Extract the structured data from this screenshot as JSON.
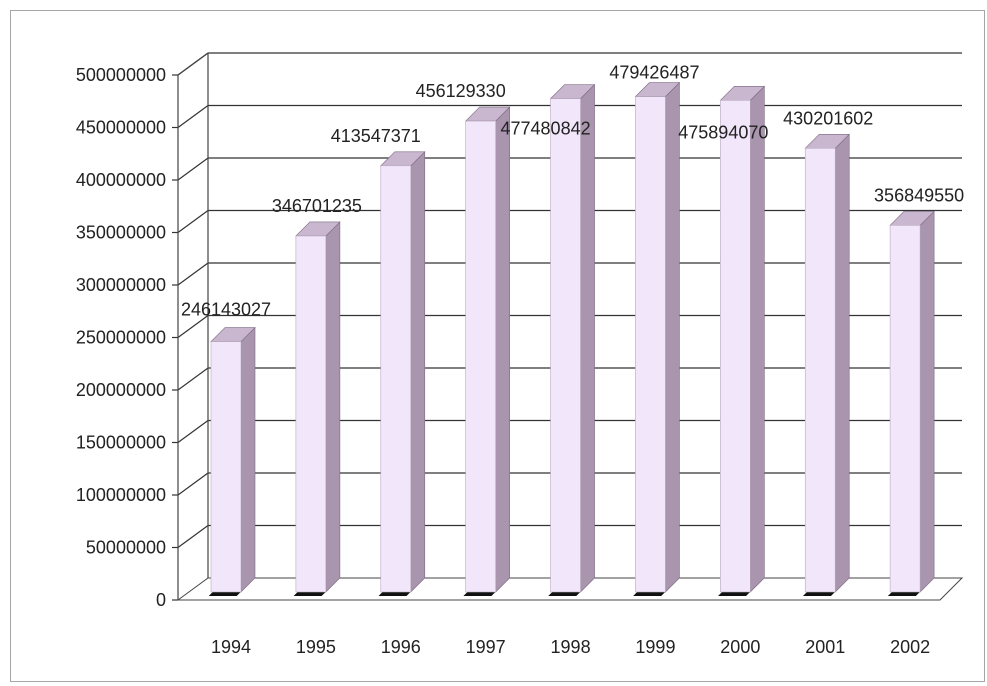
{
  "chart_data": {
    "type": "bar",
    "categories": [
      "1994",
      "1995",
      "1996",
      "1997",
      "1998",
      "1999",
      "2000",
      "2001",
      "2002"
    ],
    "values": [
      246143027,
      346701235,
      413547371,
      456129330,
      477480842,
      479426487,
      475894070,
      430201602,
      356849550
    ],
    "data_labels": [
      "246143027",
      "346701235",
      "413547371",
      "456129330",
      "477480842",
      "479426487",
      "475894070",
      "430201602",
      "356849550"
    ],
    "y_ticks": [
      "0",
      "50000000",
      "100000000",
      "150000000",
      "200000000",
      "250000000",
      "300000000",
      "350000000",
      "400000000",
      "450000000",
      "500000000"
    ],
    "ylim": [
      0,
      500000000
    ],
    "title": "",
    "xlabel": "",
    "ylabel": "",
    "grid": true,
    "legend": "none",
    "style": "3d-column",
    "colors": {
      "bar_front": "#f2e6fa",
      "bar_side": "#a995ae",
      "bar_top": "#c9b6cf",
      "gridline": "#333333",
      "floor": "#111111"
    }
  }
}
